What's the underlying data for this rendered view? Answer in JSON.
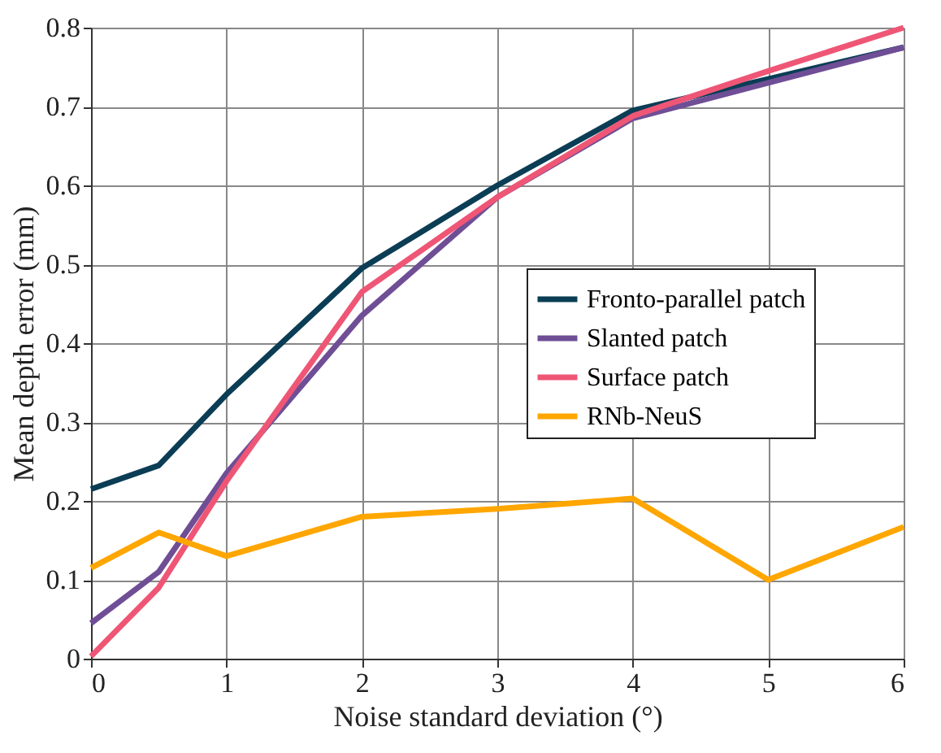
{
  "chart_data": {
    "type": "line",
    "xlabel": "Noise standard deviation (°)",
    "ylabel": "Mean depth error (mm)",
    "x": [
      0,
      0.5,
      1,
      2,
      3,
      4,
      5,
      6
    ],
    "series": [
      {
        "name": "Fronto-parallel patch",
        "color": "#0b3d55",
        "values": [
          0.215,
          0.245,
          0.335,
          0.495,
          0.6,
          0.695,
          0.735,
          0.775
        ]
      },
      {
        "name": "Slanted patch",
        "color": "#6f4e96",
        "values": [
          0.045,
          0.11,
          0.235,
          0.435,
          0.585,
          0.685,
          0.73,
          0.775
        ]
      },
      {
        "name": "Surface patch",
        "color": "#ef5676",
        "values": [
          0.003,
          0.09,
          0.225,
          0.465,
          0.585,
          0.688,
          0.745,
          0.8
        ]
      },
      {
        "name": "RNb-NeuS",
        "color": "#ffa600",
        "values": [
          0.115,
          0.16,
          0.13,
          0.18,
          0.19,
          0.203,
          0.1,
          0.167
        ]
      }
    ],
    "xlim": [
      0,
      6
    ],
    "xticks": [
      0,
      1,
      2,
      3,
      4,
      5,
      6
    ],
    "ylim": [
      0,
      0.8
    ],
    "yticks": [
      0,
      0.1,
      0.2,
      0.3,
      0.4,
      0.5,
      0.6,
      0.7,
      0.8
    ],
    "grid": true,
    "legend": "right",
    "marker": "none",
    "line_style": "solid"
  }
}
